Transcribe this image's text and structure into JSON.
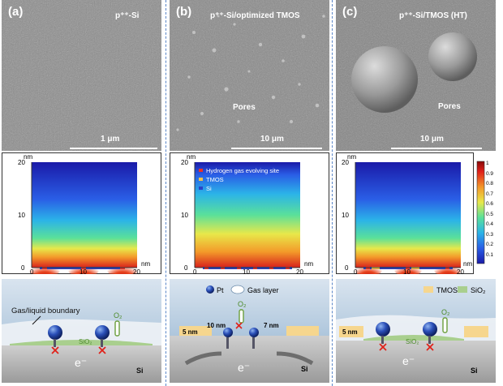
{
  "panels": [
    {
      "letter": "(a)",
      "sample": "p⁺⁺-Si",
      "scalebar": "1 μm",
      "pores": ""
    },
    {
      "letter": "(b)",
      "sample": "p⁺⁺-Si/optimized TMOS",
      "scalebar": "10 μm",
      "pores": "Pores"
    },
    {
      "letter": "(c)",
      "sample": "p⁺⁺-Si/TMOS (HT)",
      "scalebar": "10 μm",
      "pores": "Pores"
    }
  ],
  "plots": {
    "y_unit": "nm",
    "x_unit": "nm",
    "y_ticks": [
      "20",
      "10",
      "0"
    ],
    "x_ticks": [
      "0",
      "10",
      "20"
    ]
  },
  "legend_b": {
    "items": [
      {
        "label": "Hydrogen gas evolving site",
        "color": "#e8322a"
      },
      {
        "label": "TMOS",
        "color": "#f0c24a"
      },
      {
        "label": "Si",
        "color": "#2a43c8"
      }
    ]
  },
  "colorbar": {
    "ticks": [
      "1",
      "0.9",
      "0.8",
      "0.7",
      "0.6",
      "0.5",
      "0.4",
      "0.3",
      "0.2",
      "0.1"
    ]
  },
  "schemes": {
    "a_boundary": "Gas/liquid boundary",
    "o2": "O₂",
    "sio2": "SiO₂",
    "electron": "e⁻",
    "si": "Si",
    "b_pt": "Pt",
    "b_gas": "Gas layer",
    "b_10nm": "10 nm",
    "b_7nm": "7 nm",
    "b_5nm": "5 nm",
    "c_tmos": "TMOS",
    "c_sio2_legend": "SiO₂",
    "c_5nm": "5 nm"
  }
}
